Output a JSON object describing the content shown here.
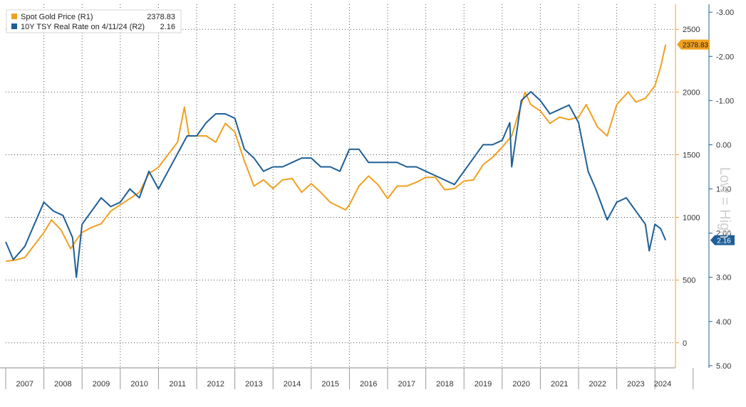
{
  "chart_data": {
    "type": "line",
    "title": "",
    "xlabel": "",
    "legend_placement": "top-left",
    "grid": true,
    "x_labels": [
      "2007",
      "2008",
      "2009",
      "2010",
      "2011",
      "2012",
      "2013",
      "2014",
      "2015",
      "2016",
      "2017",
      "2018",
      "2019",
      "2020",
      "2021",
      "2022",
      "2023",
      "2024"
    ],
    "axes": {
      "r1": {
        "ylim": [
          -200,
          2700
        ],
        "ticks": [
          "0",
          "500",
          "1000",
          "1500",
          "2000",
          "2500"
        ],
        "color": "#f0a020"
      },
      "r2": {
        "ylim": [
          5.05,
          -3.18
        ],
        "ticks": [
          "-3.00",
          "-2.00",
          "-1.00",
          "0.00",
          "1.00",
          "2.00",
          "3.00",
          "4.00",
          "5.00"
        ],
        "label": "Low = High",
        "inverted": true,
        "color": "#1f5f96"
      }
    },
    "series": [
      {
        "name": "Spot Gold Price (R1)",
        "legend_value": "2378.83",
        "last_label": "2378.83",
        "axis": "r1",
        "color": "#f0a020",
        "x": [
          2007.0,
          2007.25,
          2007.5,
          2007.75,
          2008.0,
          2008.2,
          2008.45,
          2008.7,
          2008.85,
          2009.0,
          2009.25,
          2009.5,
          2009.75,
          2010.0,
          2010.25,
          2010.5,
          2010.75,
          2011.0,
          2011.25,
          2011.5,
          2011.68,
          2011.8,
          2012.0,
          2012.25,
          2012.5,
          2012.75,
          2013.0,
          2013.25,
          2013.5,
          2013.75,
          2014.0,
          2014.25,
          2014.5,
          2014.75,
          2015.0,
          2015.25,
          2015.5,
          2015.9,
          2016.0,
          2016.25,
          2016.5,
          2016.75,
          2017.0,
          2017.25,
          2017.5,
          2017.75,
          2018.0,
          2018.25,
          2018.5,
          2018.75,
          2019.0,
          2019.25,
          2019.5,
          2019.75,
          2020.0,
          2020.25,
          2020.6,
          2020.75,
          2021.0,
          2021.25,
          2021.5,
          2021.75,
          2022.0,
          2022.2,
          2022.5,
          2022.75,
          2023.0,
          2023.3,
          2023.5,
          2023.75,
          2024.0,
          2024.15,
          2024.28
        ],
        "y": [
          650,
          660,
          680,
          780,
          880,
          980,
          900,
          750,
          820,
          880,
          920,
          950,
          1050,
          1100,
          1150,
          1200,
          1350,
          1400,
          1500,
          1600,
          1880,
          1650,
          1650,
          1650,
          1600,
          1750,
          1680,
          1450,
          1250,
          1300,
          1230,
          1300,
          1310,
          1200,
          1270,
          1200,
          1120,
          1060,
          1100,
          1250,
          1330,
          1260,
          1150,
          1250,
          1250,
          1280,
          1320,
          1320,
          1220,
          1230,
          1290,
          1300,
          1420,
          1480,
          1560,
          1650,
          2000,
          1900,
          1850,
          1750,
          1800,
          1780,
          1800,
          1900,
          1720,
          1650,
          1900,
          2000,
          1920,
          1950,
          2050,
          2200,
          2378.83
        ]
      },
      {
        "name": "10Y TSY Real Rate on 4/11/24 (R2)",
        "legend_value": "2.16",
        "last_label": "2.16",
        "axis": "r2",
        "color": "#1f5f96",
        "x": [
          2007.0,
          2007.2,
          2007.5,
          2007.75,
          2008.0,
          2008.25,
          2008.5,
          2008.75,
          2008.85,
          2009.0,
          2009.25,
          2009.5,
          2009.75,
          2010.0,
          2010.25,
          2010.5,
          2010.75,
          2011.0,
          2011.25,
          2011.5,
          2011.75,
          2012.0,
          2012.25,
          2012.5,
          2012.75,
          2013.0,
          2013.25,
          2013.5,
          2013.75,
          2014.0,
          2014.25,
          2014.5,
          2014.75,
          2015.0,
          2015.25,
          2015.5,
          2015.75,
          2016.0,
          2016.25,
          2016.5,
          2016.75,
          2017.0,
          2017.25,
          2017.5,
          2017.75,
          2018.0,
          2018.25,
          2018.5,
          2018.75,
          2019.0,
          2019.25,
          2019.5,
          2019.75,
          2020.0,
          2020.2,
          2020.25,
          2020.5,
          2020.75,
          2021.0,
          2021.25,
          2021.5,
          2021.75,
          2022.0,
          2022.25,
          2022.45,
          2022.75,
          2023.0,
          2023.25,
          2023.5,
          2023.75,
          2023.85,
          2024.0,
          2024.15,
          2024.28
        ],
        "y": [
          2.2,
          2.6,
          2.3,
          1.8,
          1.3,
          1.5,
          1.6,
          2.1,
          3.0,
          1.8,
          1.5,
          1.2,
          1.4,
          1.3,
          1.0,
          1.2,
          0.6,
          1.0,
          0.6,
          0.2,
          -0.2,
          -0.2,
          -0.5,
          -0.7,
          -0.7,
          -0.6,
          0.1,
          0.3,
          0.6,
          0.5,
          0.5,
          0.4,
          0.3,
          0.3,
          0.5,
          0.5,
          0.6,
          0.1,
          0.1,
          0.4,
          0.4,
          0.4,
          0.4,
          0.5,
          0.5,
          0.6,
          0.7,
          0.8,
          0.9,
          0.6,
          0.3,
          0.0,
          0.0,
          -0.1,
          -0.5,
          0.5,
          -1.0,
          -1.2,
          -1.0,
          -0.7,
          -0.8,
          -0.9,
          -0.5,
          0.6,
          1.0,
          1.7,
          1.3,
          1.2,
          1.5,
          1.8,
          2.4,
          1.8,
          1.9,
          2.16
        ]
      }
    ]
  }
}
